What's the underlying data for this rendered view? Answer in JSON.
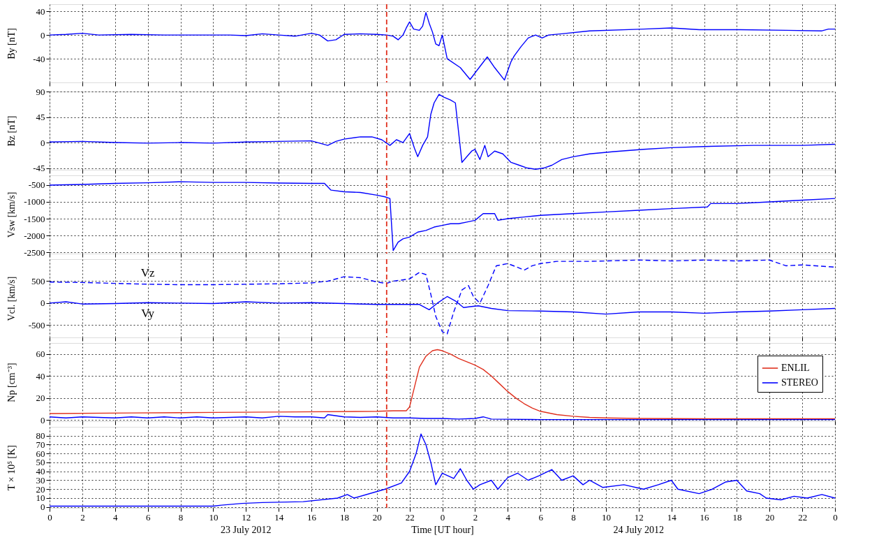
{
  "chart_data": [
    {
      "type": "line",
      "ylabel": "By [nT]",
      "xlim": [
        "2012-07-23T00:00",
        "2012-07-25T00:00"
      ],
      "ylim": [
        -80,
        52
      ],
      "yticks": [
        -40,
        0,
        40
      ],
      "grid": true,
      "tick_labels": "y",
      "xticks": [
        {
          "value": "2012-07-23T00:00",
          "label": null
        },
        {
          "value": "2012-07-23T02:00",
          "label": null
        },
        {
          "value": "2012-07-23T04:00",
          "label": null
        },
        {
          "value": "2012-07-23T06:00",
          "label": null
        },
        {
          "value": "2012-07-23T08:00",
          "label": null
        },
        {
          "value": "2012-07-23T10:00",
          "label": null
        },
        {
          "value": "2012-07-23T12:00",
          "label": null
        },
        {
          "value": "2012-07-23T14:00",
          "label": null
        },
        {
          "value": "2012-07-23T16:00",
          "label": null
        },
        {
          "value": "2012-07-23T18:00",
          "label": null
        },
        {
          "value": "2012-07-23T20:00",
          "label": null
        },
        {
          "value": "2012-07-23T22:00",
          "label": null
        },
        {
          "value": "2012-07-24T00:00",
          "label": null
        },
        {
          "value": "2012-07-24T02:00",
          "label": null
        },
        {
          "value": "2012-07-24T04:00",
          "label": null
        },
        {
          "value": "2012-07-24T06:00",
          "label": null
        },
        {
          "value": "2012-07-24T08:00",
          "label": null
        },
        {
          "value": "2012-07-24T10:00",
          "label": null
        },
        {
          "value": "2012-07-24T12:00",
          "label": null
        },
        {
          "value": "2012-07-24T14:00",
          "label": null
        },
        {
          "value": "2012-07-24T16:00",
          "label": null
        },
        {
          "value": "2012-07-24T18:00",
          "label": null
        },
        {
          "value": "2012-07-24T20:00",
          "label": null
        },
        {
          "value": "2012-07-24T22:00",
          "label": null
        },
        {
          "value": "2012-07-25T00:00",
          "label": null
        }
      ],
      "ref_lines": [
        {
          "axis": "x",
          "value": "2012-07-23T20:36",
          "color": "#e0301e",
          "line_style": "dashed"
        }
      ],
      "series": [
        {
          "color": "#0000ff",
          "x": [
            "2012-07-23T00:00",
            "2012-07-23T01:00",
            "2012-07-23T02:00",
            "2012-07-23T03:00",
            "2012-07-23T05:00",
            "2012-07-23T07:00",
            "2012-07-23T09:00",
            "2012-07-23T11:00",
            "2012-07-23T12:00",
            "2012-07-23T13:00",
            "2012-07-23T14:00",
            "2012-07-23T15:00",
            "2012-07-23T16:00",
            "2012-07-23T16:30",
            "2012-07-23T17:00",
            "2012-07-23T17:30",
            "2012-07-23T18:00",
            "2012-07-23T19:00",
            "2012-07-23T20:00",
            "2012-07-23T20:36",
            "2012-07-23T21:00",
            "2012-07-23T21:18",
            "2012-07-23T21:36",
            "2012-07-23T21:48",
            "2012-07-23T22:00",
            "2012-07-23T22:15",
            "2012-07-23T22:36",
            "2012-07-23T22:48",
            "2012-07-23T23:00",
            "2012-07-23T23:12",
            "2012-07-23T23:24",
            "2012-07-23T23:36",
            "2012-07-23T23:48",
            "2012-07-24T00:00",
            "2012-07-24T00:18",
            "2012-07-24T01:06",
            "2012-07-24T01:42",
            "2012-07-24T02:15",
            "2012-07-24T02:45",
            "2012-07-24T03:12",
            "2012-07-24T03:48",
            "2012-07-24T04:12",
            "2012-07-24T04:24",
            "2012-07-24T04:48",
            "2012-07-24T05:15",
            "2012-07-24T05:42",
            "2012-07-24T06:06",
            "2012-07-24T06:30",
            "2012-07-24T07:18",
            "2012-07-24T09:00",
            "2012-07-24T12:18",
            "2012-07-24T14:00",
            "2012-07-24T15:42",
            "2012-07-24T18:12",
            "2012-07-24T21:00",
            "2012-07-24T23:12",
            "2012-07-24T23:36",
            "2012-07-25T00:00"
          ],
          "values": [
            0,
            1,
            3,
            0,
            1,
            0,
            0,
            0,
            -1,
            2,
            0,
            -2,
            3,
            0,
            -10,
            -8,
            1,
            2,
            1,
            0,
            -2,
            -8,
            0,
            12,
            22,
            10,
            8,
            15,
            38,
            20,
            5,
            -15,
            -18,
            0,
            -40,
            -55,
            -75,
            -55,
            -37,
            -55,
            -76,
            -45,
            -35,
            -20,
            -5,
            0,
            -5,
            0,
            2,
            7,
            10,
            12,
            9,
            9,
            8,
            7,
            10,
            10
          ]
        }
      ]
    },
    {
      "type": "line",
      "ylabel": "Bz [nT]",
      "xlim": [
        "2012-07-23T00:00",
        "2012-07-25T00:00"
      ],
      "ylim": [
        -48,
        90
      ],
      "yticks": [
        -45,
        0,
        45,
        90
      ],
      "grid": true,
      "tick_labels": "y",
      "xticks": [
        {
          "value": "2012-07-23T00:00",
          "label": null
        },
        {
          "value": "2012-07-23T02:00",
          "label": null
        },
        {
          "value": "2012-07-23T04:00",
          "label": null
        },
        {
          "value": "2012-07-23T06:00",
          "label": null
        },
        {
          "value": "2012-07-23T08:00",
          "label": null
        },
        {
          "value": "2012-07-23T10:00",
          "label": null
        },
        {
          "value": "2012-07-23T12:00",
          "label": null
        },
        {
          "value": "2012-07-23T14:00",
          "label": null
        },
        {
          "value": "2012-07-23T16:00",
          "label": null
        },
        {
          "value": "2012-07-23T18:00",
          "label": null
        },
        {
          "value": "2012-07-23T20:00",
          "label": null
        },
        {
          "value": "2012-07-23T22:00",
          "label": null
        },
        {
          "value": "2012-07-24T00:00",
          "label": null
        },
        {
          "value": "2012-07-24T02:00",
          "label": null
        },
        {
          "value": "2012-07-24T04:00",
          "label": null
        },
        {
          "value": "2012-07-24T06:00",
          "label": null
        },
        {
          "value": "2012-07-24T08:00",
          "label": null
        },
        {
          "value": "2012-07-24T10:00",
          "label": null
        },
        {
          "value": "2012-07-24T12:00",
          "label": null
        },
        {
          "value": "2012-07-24T14:00",
          "label": null
        },
        {
          "value": "2012-07-24T16:00",
          "label": null
        },
        {
          "value": "2012-07-24T18:00",
          "label": null
        },
        {
          "value": "2012-07-24T20:00",
          "label": null
        },
        {
          "value": "2012-07-24T22:00",
          "label": null
        },
        {
          "value": "2012-07-25T00:00",
          "label": null
        }
      ],
      "ref_lines": [
        {
          "axis": "x",
          "value": "2012-07-23T20:36",
          "color": "#e0301e",
          "line_style": "dashed"
        }
      ],
      "series": [
        {
          "color": "#0000ff",
          "x": [
            "2012-07-23T00:00",
            "2012-07-23T02:00",
            "2012-07-23T04:00",
            "2012-07-23T06:00",
            "2012-07-23T08:00",
            "2012-07-23T10:00",
            "2012-07-23T12:00",
            "2012-07-23T14:00",
            "2012-07-23T16:00",
            "2012-07-23T17:00",
            "2012-07-23T17:30",
            "2012-07-23T18:00",
            "2012-07-23T19:00",
            "2012-07-23T19:42",
            "2012-07-23T20:18",
            "2012-07-23T20:48",
            "2012-07-23T21:12",
            "2012-07-23T21:36",
            "2012-07-23T22:00",
            "2012-07-23T22:18",
            "2012-07-23T22:30",
            "2012-07-23T22:48",
            "2012-07-23T23:06",
            "2012-07-23T23:18",
            "2012-07-23T23:30",
            "2012-07-23T23:48",
            "2012-07-24T00:06",
            "2012-07-24T00:30",
            "2012-07-24T00:48",
            "2012-07-24T01:12",
            "2012-07-24T01:30",
            "2012-07-24T01:48",
            "2012-07-24T02:00",
            "2012-07-24T02:18",
            "2012-07-24T02:36",
            "2012-07-24T02:48",
            "2012-07-24T03:12",
            "2012-07-24T03:42",
            "2012-07-24T04:12",
            "2012-07-24T04:42",
            "2012-07-24T05:12",
            "2012-07-24T05:42",
            "2012-07-24T06:12",
            "2012-07-24T06:42",
            "2012-07-24T07:18",
            "2012-07-24T08:00",
            "2012-07-24T09:00",
            "2012-07-24T10:30",
            "2012-07-24T12:18",
            "2012-07-24T14:00",
            "2012-07-24T16:00",
            "2012-07-24T19:00",
            "2012-07-24T22:00",
            "2012-07-25T00:00"
          ],
          "values": [
            1,
            2,
            0,
            -1,
            0,
            -1,
            1,
            2,
            3,
            -5,
            2,
            6,
            10,
            10,
            5,
            -5,
            5,
            0,
            16,
            -10,
            -25,
            -5,
            10,
            50,
            70,
            85,
            80,
            75,
            70,
            -35,
            -25,
            -15,
            -12,
            -30,
            -5,
            -25,
            -15,
            -20,
            -35,
            -40,
            -45,
            -47,
            -45,
            -40,
            -30,
            -25,
            -20,
            -16,
            -12,
            -9,
            -7,
            -5,
            -5,
            -3
          ]
        }
      ]
    },
    {
      "type": "line",
      "ylabel": "Vsw [km/s]",
      "xlim": [
        "2012-07-23T00:00",
        "2012-07-25T00:00"
      ],
      "ylim": [
        -2540,
        -210
      ],
      "yticks": [
        -2500,
        -2000,
        -1500,
        -1000,
        -500
      ],
      "grid": true,
      "tick_labels": "y",
      "xticks": [
        {
          "value": "2012-07-23T00:00",
          "label": null
        },
        {
          "value": "2012-07-23T02:00",
          "label": null
        },
        {
          "value": "2012-07-23T04:00",
          "label": null
        },
        {
          "value": "2012-07-23T06:00",
          "label": null
        },
        {
          "value": "2012-07-23T08:00",
          "label": null
        },
        {
          "value": "2012-07-23T10:00",
          "label": null
        },
        {
          "value": "2012-07-23T12:00",
          "label": null
        },
        {
          "value": "2012-07-23T14:00",
          "label": null
        },
        {
          "value": "2012-07-23T16:00",
          "label": null
        },
        {
          "value": "2012-07-23T18:00",
          "label": null
        },
        {
          "value": "2012-07-23T20:00",
          "label": null
        },
        {
          "value": "2012-07-23T22:00",
          "label": null
        },
        {
          "value": "2012-07-24T00:00",
          "label": null
        },
        {
          "value": "2012-07-24T02:00",
          "label": null
        },
        {
          "value": "2012-07-24T04:00",
          "label": null
        },
        {
          "value": "2012-07-24T06:00",
          "label": null
        },
        {
          "value": "2012-07-24T08:00",
          "label": null
        },
        {
          "value": "2012-07-24T10:00",
          "label": null
        },
        {
          "value": "2012-07-24T12:00",
          "label": null
        },
        {
          "value": "2012-07-24T14:00",
          "label": null
        },
        {
          "value": "2012-07-24T16:00",
          "label": null
        },
        {
          "value": "2012-07-24T18:00",
          "label": null
        },
        {
          "value": "2012-07-24T20:00",
          "label": null
        },
        {
          "value": "2012-07-24T22:00",
          "label": null
        },
        {
          "value": "2012-07-25T00:00",
          "label": null
        }
      ],
      "ref_lines": [
        {
          "axis": "x",
          "value": "2012-07-23T20:36",
          "color": "#e0301e",
          "line_style": "dashed"
        }
      ],
      "series": [
        {
          "color": "#0000ff",
          "x": [
            "2012-07-23T00:00",
            "2012-07-23T02:00",
            "2012-07-23T04:00",
            "2012-07-23T06:00",
            "2012-07-23T08:00",
            "2012-07-23T10:00",
            "2012-07-23T12:00",
            "2012-07-23T14:00",
            "2012-07-23T16:00",
            "2012-07-23T16:48",
            "2012-07-23T17:12",
            "2012-07-23T18:00",
            "2012-07-23T19:00",
            "2012-07-23T20:00",
            "2012-07-23T20:30",
            "2012-07-23T20:48",
            "2012-07-23T21:00",
            "2012-07-23T21:18",
            "2012-07-23T21:36",
            "2012-07-23T22:00",
            "2012-07-23T22:30",
            "2012-07-23T23:00",
            "2012-07-23T23:30",
            "2012-07-24T00:00",
            "2012-07-24T00:30",
            "2012-07-24T01:00",
            "2012-07-24T01:30",
            "2012-07-24T02:00",
            "2012-07-24T02:30",
            "2012-07-24T03:12",
            "2012-07-24T03:24",
            "2012-07-24T04:00",
            "2012-07-24T05:00",
            "2012-07-24T06:00",
            "2012-07-24T08:00",
            "2012-07-24T10:00",
            "2012-07-24T12:00",
            "2012-07-24T14:00",
            "2012-07-24T16:12",
            "2012-07-24T16:24",
            "2012-07-24T18:00",
            "2012-07-24T20:00",
            "2012-07-24T22:00",
            "2012-07-25T00:00"
          ],
          "values": [
            -500,
            -480,
            -450,
            -430,
            -400,
            -420,
            -420,
            -440,
            -450,
            -450,
            -650,
            -700,
            -720,
            -800,
            -850,
            -900,
            -2450,
            -2200,
            -2100,
            -2050,
            -1900,
            -1850,
            -1750,
            -1700,
            -1650,
            -1650,
            -1600,
            -1550,
            -1350,
            -1350,
            -1550,
            -1500,
            -1450,
            -1400,
            -1350,
            -1300,
            -1250,
            -1200,
            -1150,
            -1050,
            -1050,
            -1000,
            -950,
            -900
          ]
        }
      ]
    },
    {
      "type": "line",
      "ylabel": "Vcl. [km/s]",
      "xlim": [
        "2012-07-23T00:00",
        "2012-07-25T00:00"
      ],
      "ylim": [
        -780,
        1000
      ],
      "yticks": [
        -500,
        0,
        500
      ],
      "grid": true,
      "tick_labels": "y",
      "xticks": [
        {
          "value": "2012-07-23T00:00",
          "label": null
        },
        {
          "value": "2012-07-23T02:00",
          "label": null
        },
        {
          "value": "2012-07-23T04:00",
          "label": null
        },
        {
          "value": "2012-07-23T06:00",
          "label": null
        },
        {
          "value": "2012-07-23T08:00",
          "label": null
        },
        {
          "value": "2012-07-23T10:00",
          "label": null
        },
        {
          "value": "2012-07-23T12:00",
          "label": null
        },
        {
          "value": "2012-07-23T14:00",
          "label": null
        },
        {
          "value": "2012-07-23T16:00",
          "label": null
        },
        {
          "value": "2012-07-23T18:00",
          "label": null
        },
        {
          "value": "2012-07-23T20:00",
          "label": null
        },
        {
          "value": "2012-07-23T22:00",
          "label": null
        },
        {
          "value": "2012-07-24T00:00",
          "label": null
        },
        {
          "value": "2012-07-24T02:00",
          "label": null
        },
        {
          "value": "2012-07-24T04:00",
          "label": null
        },
        {
          "value": "2012-07-24T06:00",
          "label": null
        },
        {
          "value": "2012-07-24T08:00",
          "label": null
        },
        {
          "value": "2012-07-24T10:00",
          "label": null
        },
        {
          "value": "2012-07-24T12:00",
          "label": null
        },
        {
          "value": "2012-07-24T14:00",
          "label": null
        },
        {
          "value": "2012-07-24T16:00",
          "label": null
        },
        {
          "value": "2012-07-24T18:00",
          "label": null
        },
        {
          "value": "2012-07-24T20:00",
          "label": null
        },
        {
          "value": "2012-07-24T22:00",
          "label": null
        },
        {
          "value": "2012-07-25T00:00",
          "label": null
        }
      ],
      "ref_lines": [
        {
          "axis": "x",
          "value": "2012-07-23T20:36",
          "color": "#e0301e",
          "line_style": "dashed"
        }
      ],
      "series": [
        {
          "name": "Vz",
          "color": "#0000ff",
          "line_style": "dashed",
          "x": [
            "2012-07-23T00:00",
            "2012-07-23T02:00",
            "2012-07-23T04:00",
            "2012-07-23T06:00",
            "2012-07-23T08:00",
            "2012-07-23T10:00",
            "2012-07-23T12:00",
            "2012-07-23T14:00",
            "2012-07-23T16:00",
            "2012-07-23T17:00",
            "2012-07-23T18:00",
            "2012-07-23T19:00",
            "2012-07-23T20:00",
            "2012-07-23T20:36",
            "2012-07-23T21:00",
            "2012-07-23T22:00",
            "2012-07-23T22:36",
            "2012-07-23T23:00",
            "2012-07-23T23:18",
            "2012-07-23T23:36",
            "2012-07-24T00:00",
            "2012-07-24T00:18",
            "2012-07-24T00:42",
            "2012-07-24T01:12",
            "2012-07-24T01:36",
            "2012-07-24T01:54",
            "2012-07-24T02:18",
            "2012-07-24T02:48",
            "2012-07-24T03:18",
            "2012-07-24T04:00",
            "2012-07-24T04:42",
            "2012-07-24T05:00",
            "2012-07-24T05:30",
            "2012-07-24T06:00",
            "2012-07-24T07:00",
            "2012-07-24T09:00",
            "2012-07-24T12:00",
            "2012-07-24T14:00",
            "2012-07-24T16:00",
            "2012-07-24T18:00",
            "2012-07-24T20:00",
            "2012-07-24T21:00",
            "2012-07-24T22:00",
            "2012-07-25T00:00"
          ],
          "values": [
            480,
            470,
            450,
            430,
            420,
            420,
            430,
            440,
            460,
            500,
            600,
            580,
            480,
            450,
            500,
            550,
            700,
            650,
            200,
            -300,
            -650,
            -700,
            -200,
            300,
            400,
            150,
            0,
            400,
            850,
            900,
            800,
            750,
            850,
            900,
            950,
            950,
            980,
            960,
            980,
            960,
            980,
            850,
            870,
            820
          ]
        },
        {
          "name": "Vy",
          "color": "#0000ff",
          "line_style": "solid",
          "x": [
            "2012-07-23T00:00",
            "2012-07-23T01:00",
            "2012-07-23T02:00",
            "2012-07-23T04:00",
            "2012-07-23T06:00",
            "2012-07-23T08:00",
            "2012-07-23T10:00",
            "2012-07-23T12:00",
            "2012-07-23T14:00",
            "2012-07-23T16:00",
            "2012-07-23T18:00",
            "2012-07-23T20:00",
            "2012-07-23T22:00",
            "2012-07-23T22:36",
            "2012-07-23T23:12",
            "2012-07-23T23:42",
            "2012-07-24T00:18",
            "2012-07-24T00:48",
            "2012-07-24T01:18",
            "2012-07-24T01:42",
            "2012-07-24T02:12",
            "2012-07-24T03:00",
            "2012-07-24T04:00",
            "2012-07-24T06:00",
            "2012-07-24T08:00",
            "2012-07-24T10:00",
            "2012-07-24T12:00",
            "2012-07-24T14:00",
            "2012-07-24T16:00",
            "2012-07-24T18:00",
            "2012-07-24T20:00",
            "2012-07-24T22:00",
            "2012-07-25T00:00"
          ],
          "values": [
            0,
            30,
            -20,
            -10,
            10,
            0,
            -10,
            30,
            0,
            10,
            -10,
            -30,
            -30,
            -30,
            -150,
            0,
            150,
            50,
            -100,
            -80,
            -60,
            -120,
            -170,
            -180,
            -200,
            -250,
            -200,
            -200,
            -230,
            -200,
            -180,
            -150,
            -120
          ]
        }
      ]
    },
    {
      "type": "line",
      "ylabel": "Np [cm⁻³]",
      "xlim": [
        "2012-07-23T00:00",
        "2012-07-25T00:00"
      ],
      "ylim": [
        -1,
        70
      ],
      "yticks": [
        0,
        20,
        40,
        60
      ],
      "grid": true,
      "tick_labels": "y",
      "legend": "top right",
      "xticks": [
        {
          "value": "2012-07-23T00:00",
          "label": null
        },
        {
          "value": "2012-07-23T02:00",
          "label": null
        },
        {
          "value": "2012-07-23T04:00",
          "label": null
        },
        {
          "value": "2012-07-23T06:00",
          "label": null
        },
        {
          "value": "2012-07-23T08:00",
          "label": null
        },
        {
          "value": "2012-07-23T10:00",
          "label": null
        },
        {
          "value": "2012-07-23T12:00",
          "label": null
        },
        {
          "value": "2012-07-23T14:00",
          "label": null
        },
        {
          "value": "2012-07-23T16:00",
          "label": null
        },
        {
          "value": "2012-07-23T18:00",
          "label": null
        },
        {
          "value": "2012-07-23T20:00",
          "label": null
        },
        {
          "value": "2012-07-23T22:00",
          "label": null
        },
        {
          "value": "2012-07-24T00:00",
          "label": null
        },
        {
          "value": "2012-07-24T02:00",
          "label": null
        },
        {
          "value": "2012-07-24T04:00",
          "label": null
        },
        {
          "value": "2012-07-24T06:00",
          "label": null
        },
        {
          "value": "2012-07-24T08:00",
          "label": null
        },
        {
          "value": "2012-07-24T10:00",
          "label": null
        },
        {
          "value": "2012-07-24T12:00",
          "label": null
        },
        {
          "value": "2012-07-24T14:00",
          "label": null
        },
        {
          "value": "2012-07-24T16:00",
          "label": null
        },
        {
          "value": "2012-07-24T18:00",
          "label": null
        },
        {
          "value": "2012-07-24T20:00",
          "label": null
        },
        {
          "value": "2012-07-24T22:00",
          "label": null
        },
        {
          "value": "2012-07-25T00:00",
          "label": null
        }
      ],
      "ref_lines": [
        {
          "axis": "x",
          "value": "2012-07-23T20:36",
          "color": "#e0301e",
          "line_style": "dashed"
        }
      ],
      "series": [
        {
          "name": "ENLIL",
          "color": "#e0301e",
          "x": [
            "2012-07-23T00:00",
            "2012-07-23T05:00",
            "2012-07-23T10:00",
            "2012-07-23T15:00",
            "2012-07-23T20:00",
            "2012-07-23T21:00",
            "2012-07-23T21:48",
            "2012-07-23T22:00",
            "2012-07-23T22:18",
            "2012-07-23T22:36",
            "2012-07-23T23:00",
            "2012-07-23T23:24",
            "2012-07-23T23:42",
            "2012-07-24T00:00",
            "2012-07-24T00:30",
            "2012-07-24T01:00",
            "2012-07-24T01:30",
            "2012-07-24T02:00",
            "2012-07-24T02:30",
            "2012-07-24T03:00",
            "2012-07-24T03:30",
            "2012-07-24T04:00",
            "2012-07-24T04:30",
            "2012-07-24T05:00",
            "2012-07-24T05:30",
            "2012-07-24T06:00",
            "2012-07-24T07:00",
            "2012-07-24T08:00",
            "2012-07-24T09:00",
            "2012-07-24T10:00",
            "2012-07-24T12:00",
            "2012-07-24T16:00",
            "2012-07-24T20:00",
            "2012-07-25T00:00"
          ],
          "values": [
            6,
            6.5,
            7,
            7.5,
            8,
            8.5,
            8.5,
            12,
            30,
            48,
            58,
            63,
            64,
            63,
            60,
            56,
            53,
            50,
            46,
            40,
            33,
            26,
            20,
            15,
            11,
            8,
            5,
            3.5,
            2.5,
            2,
            1.5,
            1.2,
            1.2,
            1.2
          ]
        },
        {
          "name": "STEREO",
          "color": "#0000ff",
          "x": [
            "2012-07-23T00:00",
            "2012-07-23T01:00",
            "2012-07-23T02:00",
            "2012-07-23T03:00",
            "2012-07-23T04:00",
            "2012-07-23T05:00",
            "2012-07-23T06:00",
            "2012-07-23T07:00",
            "2012-07-23T08:00",
            "2012-07-23T09:00",
            "2012-07-23T10:00",
            "2012-07-23T11:00",
            "2012-07-23T12:00",
            "2012-07-23T13:00",
            "2012-07-23T14:00",
            "2012-07-23T15:00",
            "2012-07-23T16:00",
            "2012-07-23T16:48",
            "2012-07-23T17:00",
            "2012-07-23T18:00",
            "2012-07-23T19:00",
            "2012-07-23T20:00",
            "2012-07-23T21:00",
            "2012-07-23T22:00",
            "2012-07-23T23:00",
            "2012-07-24T00:00",
            "2012-07-24T01:00",
            "2012-07-24T02:00",
            "2012-07-24T02:30",
            "2012-07-24T03:00",
            "2012-07-24T04:00",
            "2012-07-24T06:00",
            "2012-07-24T08:00",
            "2012-07-24T12:00",
            "2012-07-24T16:00",
            "2012-07-24T20:00",
            "2012-07-25T00:00"
          ],
          "values": [
            3,
            2,
            3,
            2.5,
            2,
            3,
            2,
            3,
            2,
            3,
            2,
            2.5,
            3,
            2,
            3.5,
            3,
            3,
            2,
            5,
            3,
            2.5,
            3,
            2,
            2,
            1.5,
            1.5,
            1,
            1.5,
            3,
            1,
            0.8,
            0.5,
            0.5,
            0.5,
            0.5,
            0.5,
            0.5
          ]
        }
      ]
    },
    {
      "type": "line",
      "ylabel": "T × 10⁵ [K]",
      "xlabel": "Time [UT hour]",
      "xlim": [
        "2012-07-23T00:00",
        "2012-07-25T00:00"
      ],
      "ylim": [
        -1,
        90
      ],
      "yticks": [
        0,
        10,
        20,
        30,
        40,
        50,
        60,
        70,
        80
      ],
      "grid": true,
      "xticks": [
        {
          "value": "2012-07-23T00:00",
          "label": "0"
        },
        {
          "value": "2012-07-23T02:00",
          "label": "2"
        },
        {
          "value": "2012-07-23T04:00",
          "label": "4"
        },
        {
          "value": "2012-07-23T06:00",
          "label": "6"
        },
        {
          "value": "2012-07-23T08:00",
          "label": "8"
        },
        {
          "value": "2012-07-23T10:00",
          "label": "10"
        },
        {
          "value": "2012-07-23T12:00",
          "label": "12"
        },
        {
          "value": "2012-07-23T14:00",
          "label": "14"
        },
        {
          "value": "2012-07-23T16:00",
          "label": "16"
        },
        {
          "value": "2012-07-23T18:00",
          "label": "18"
        },
        {
          "value": "2012-07-23T20:00",
          "label": "20"
        },
        {
          "value": "2012-07-23T22:00",
          "label": "22"
        },
        {
          "value": "2012-07-24T00:00",
          "label": "0"
        },
        {
          "value": "2012-07-24T02:00",
          "label": "2"
        },
        {
          "value": "2012-07-24T04:00",
          "label": "4"
        },
        {
          "value": "2012-07-24T06:00",
          "label": "6"
        },
        {
          "value": "2012-07-24T08:00",
          "label": "8"
        },
        {
          "value": "2012-07-24T10:00",
          "label": "10"
        },
        {
          "value": "2012-07-24T12:00",
          "label": "12"
        },
        {
          "value": "2012-07-24T14:00",
          "label": "14"
        },
        {
          "value": "2012-07-24T16:00",
          "label": "16"
        },
        {
          "value": "2012-07-24T18:00",
          "label": "18"
        },
        {
          "value": "2012-07-24T20:00",
          "label": "20"
        },
        {
          "value": "2012-07-24T22:00",
          "label": "22"
        },
        {
          "value": "2012-07-25T00:00",
          "label": "0"
        }
      ],
      "ref_lines": [
        {
          "axis": "x",
          "value": "2012-07-23T20:36",
          "color": "#e0301e",
          "line_style": "dashed"
        }
      ],
      "annotations": [
        "23 July 2012",
        "24 July 2012"
      ],
      "series": [
        {
          "color": "#0000ff",
          "x": [
            "2012-07-23T00:00",
            "2012-07-23T05:00",
            "2012-07-23T10:00",
            "2012-07-23T10:30",
            "2012-07-23T11:45",
            "2012-07-23T13:00",
            "2012-07-23T15:30",
            "2012-07-23T17:36",
            "2012-07-23T18:12",
            "2012-07-23T18:36",
            "2012-07-23T20:30",
            "2012-07-23T21:30",
            "2012-07-23T22:00",
            "2012-07-23T22:24",
            "2012-07-23T22:42",
            "2012-07-23T23:00",
            "2012-07-23T23:18",
            "2012-07-23T23:36",
            "2012-07-24T00:00",
            "2012-07-24T00:42",
            "2012-07-24T01:06",
            "2012-07-24T01:30",
            "2012-07-24T01:54",
            "2012-07-24T02:18",
            "2012-07-24T03:00",
            "2012-07-24T03:24",
            "2012-07-24T04:00",
            "2012-07-24T04:36",
            "2012-07-24T05:15",
            "2012-07-24T05:54",
            "2012-07-24T06:42",
            "2012-07-24T07:18",
            "2012-07-24T08:00",
            "2012-07-24T08:36",
            "2012-07-24T09:00",
            "2012-07-24T09:48",
            "2012-07-24T11:06",
            "2012-07-24T12:18",
            "2012-07-24T13:12",
            "2012-07-24T14:00",
            "2012-07-24T14:24",
            "2012-07-24T15:42",
            "2012-07-24T16:30",
            "2012-07-24T17:18",
            "2012-07-24T18:00",
            "2012-07-24T18:36",
            "2012-07-24T19:24",
            "2012-07-24T19:48",
            "2012-07-24T20:42",
            "2012-07-24T21:30",
            "2012-07-24T22:18",
            "2012-07-24T23:12",
            "2012-07-25T00:00"
          ],
          "values": [
            1,
            1,
            1,
            2,
            4,
            5,
            6,
            10,
            14,
            10,
            20,
            27,
            40,
            60,
            82,
            70,
            50,
            25,
            38,
            32,
            43,
            30,
            20,
            25,
            30,
            20,
            33,
            38,
            30,
            35,
            42,
            30,
            35,
            25,
            30,
            22,
            25,
            20,
            25,
            30,
            20,
            15,
            20,
            28,
            30,
            18,
            15,
            10,
            8,
            12,
            10,
            14,
            10
          ]
        }
      ]
    }
  ]
}
